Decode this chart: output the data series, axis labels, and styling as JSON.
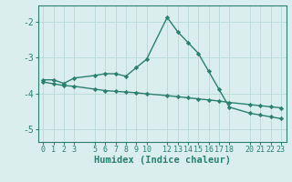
{
  "x_ticks": [
    0,
    1,
    2,
    3,
    5,
    6,
    7,
    8,
    9,
    10,
    12,
    13,
    14,
    15,
    16,
    17,
    18,
    20,
    21,
    22,
    23
  ],
  "line1_x": [
    0,
    1,
    2,
    3,
    5,
    6,
    7,
    8,
    9,
    10,
    12,
    13,
    14,
    15,
    16,
    17,
    18,
    20,
    21,
    22,
    23
  ],
  "line1_y": [
    -3.62,
    -3.62,
    -3.72,
    -3.57,
    -3.5,
    -3.45,
    -3.45,
    -3.52,
    -3.28,
    -3.05,
    -1.88,
    -2.28,
    -2.58,
    -2.88,
    -3.38,
    -3.88,
    -4.38,
    -4.55,
    -4.6,
    -4.65,
    -4.7
  ],
  "line2_x": [
    0,
    1,
    2,
    3,
    5,
    6,
    7,
    8,
    9,
    10,
    12,
    13,
    14,
    15,
    16,
    17,
    18,
    20,
    21,
    22,
    23
  ],
  "line2_y": [
    -3.68,
    -3.73,
    -3.78,
    -3.8,
    -3.88,
    -3.92,
    -3.94,
    -3.96,
    -3.98,
    -4.01,
    -4.06,
    -4.09,
    -4.12,
    -4.15,
    -4.18,
    -4.21,
    -4.25,
    -4.31,
    -4.34,
    -4.37,
    -4.4
  ],
  "line_color": "#2a7f6f",
  "background_color": "#daeeed",
  "grid_color": "#b5d9d5",
  "xlabel": "Humidex (Indice chaleur)",
  "ylim": [
    -5.35,
    -1.55
  ],
  "xlim": [
    -0.5,
    23.5
  ],
  "yticks": [
    -5,
    -4,
    -3,
    -2
  ],
  "marker": "D",
  "marker_size": 2.2,
  "font_size": 7,
  "xlabel_size": 7.5,
  "line_width": 1.0
}
